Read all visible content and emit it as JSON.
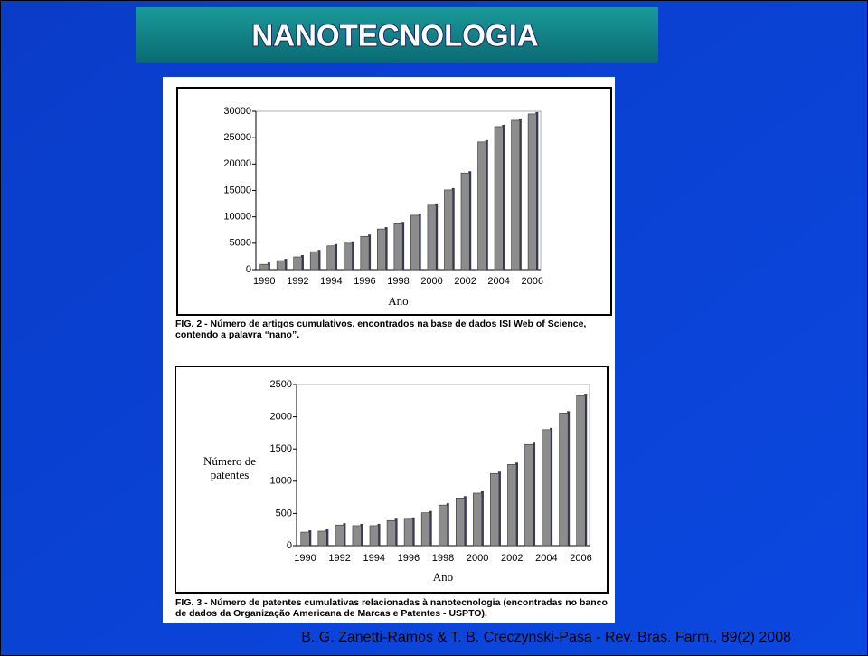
{
  "slide": {
    "title": "NANOTECNOLOGIA",
    "citation": "B. G. Zanetti-Ramos & T. B. Creczynski-Pasa - Rev. Bras. Farm., 89(2) 2008"
  },
  "chart_data": [
    {
      "type": "bar",
      "xlabel": "Ano",
      "caption": "FIG. 2 - Número de artigos cumulativos, encontrados na base de dados ISI Web of Science, contendo a palavra “nano”.",
      "categories": [
        "1990",
        null,
        "1992",
        null,
        "1994",
        null,
        "1996",
        null,
        "1998",
        null,
        "2000",
        null,
        "2002",
        null,
        "2004",
        null,
        "2006"
      ],
      "values": [
        1000,
        1700,
        2400,
        3400,
        4500,
        5000,
        6300,
        7700,
        8700,
        10300,
        12200,
        15100,
        18300,
        24200,
        27100,
        28300,
        29500
      ],
      "color": "#8c8c8c",
      "ylim": [
        0,
        30000
      ],
      "yticks": [
        0,
        5000,
        10000,
        15000,
        20000,
        25000,
        30000
      ]
    },
    {
      "type": "bar",
      "xlabel": "Ano",
      "ylabel": "Número de patentes",
      "caption": "FIG. 3 - Número de patentes cumulativas relacionadas à nanotecnologia (encontradas no banco de dados da Organização Americana de Marcas e Patentes - USPTO).",
      "categories": [
        "1990",
        null,
        "1992",
        null,
        "1994",
        null,
        "1996",
        null,
        "1998",
        null,
        "2000",
        null,
        "2002",
        null,
        "2004",
        null,
        "2006"
      ],
      "values": [
        210,
        225,
        320,
        310,
        310,
        390,
        410,
        510,
        630,
        740,
        815,
        1120,
        1260,
        1570,
        1800,
        2060,
        2330
      ],
      "color": "#8c8c8c",
      "ylim": [
        0,
        2500
      ],
      "yticks": [
        0,
        500,
        1000,
        1500,
        2000,
        2500
      ]
    }
  ]
}
